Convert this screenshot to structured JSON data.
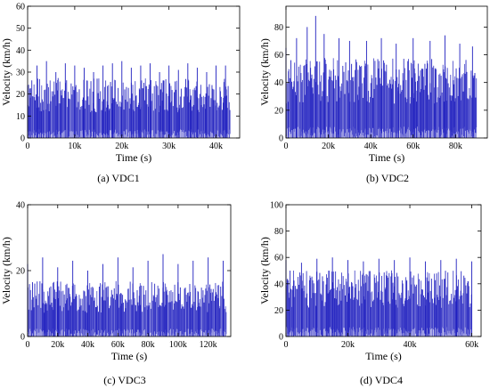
{
  "chart_data": [
    {
      "type": "line",
      "caption": "(a) VDC1",
      "xlabel": "Time (s)",
      "ylabel": "Velocity (km/h)",
      "xlim": [
        0,
        45000
      ],
      "ylim": [
        0,
        60
      ],
      "xticks": [
        0,
        10000,
        20000,
        30000,
        40000
      ],
      "xtick_labels": [
        "0",
        "10k",
        "20k",
        "30k",
        "40k"
      ],
      "yticks": [
        0,
        10,
        20,
        30,
        40,
        50,
        60
      ],
      "ytick_labels": [
        "0",
        "10",
        "20",
        "30",
        "40",
        "50",
        "60"
      ],
      "grid": false,
      "color": "#1f1fbf",
      "data_end": 43000,
      "typical_peak": 26,
      "max_peak": 35,
      "x": [
        0,
        2000,
        4000,
        6000,
        8000,
        10000,
        12000,
        14000,
        16000,
        18000,
        20000,
        22000,
        24000,
        26000,
        28000,
        30000,
        32000,
        34000,
        36000,
        38000,
        40000,
        42000
      ],
      "y": [
        24,
        33,
        35,
        30,
        34,
        33,
        32,
        30,
        33,
        34,
        35,
        32,
        33,
        34,
        30,
        33,
        31,
        34,
        32,
        30,
        33,
        33
      ]
    },
    {
      "type": "line",
      "caption": "(b) VDC2",
      "xlabel": "Time (s)",
      "ylabel": "Velocity (km/h)",
      "xlim": [
        0,
        95000
      ],
      "ylim": [
        0,
        95
      ],
      "xticks": [
        0,
        20000,
        40000,
        60000,
        80000
      ],
      "xtick_labels": [
        "0",
        "20k",
        "40k",
        "60k",
        "80k"
      ],
      "yticks": [
        0,
        20,
        40,
        60,
        80
      ],
      "ytick_labels": [
        "0",
        "20",
        "40",
        "60",
        "80"
      ],
      "grid": false,
      "color": "#1f1fbf",
      "data_end": 90000,
      "typical_peak": 55,
      "max_peak": 88,
      "x": [
        0,
        5000,
        10000,
        14000,
        18000,
        25000,
        30000,
        38000,
        45000,
        52000,
        60000,
        68000,
        75000,
        82000,
        88000
      ],
      "y": [
        65,
        72,
        80,
        88,
        75,
        72,
        70,
        70,
        72,
        68,
        72,
        70,
        74,
        68,
        66
      ]
    },
    {
      "type": "line",
      "caption": "(c) VDC3",
      "xlabel": "Time (s)",
      "ylabel": "Velocity (km/h)",
      "xlim": [
        0,
        135000
      ],
      "ylim": [
        0,
        40
      ],
      "xticks": [
        0,
        20000,
        40000,
        60000,
        80000,
        100000,
        120000
      ],
      "xtick_labels": [
        "0",
        "20k",
        "40k",
        "60k",
        "80k",
        "100k",
        "120k"
      ],
      "yticks": [
        0,
        20,
        40
      ],
      "ytick_labels": [
        "0",
        "20",
        "40"
      ],
      "grid": false,
      "color": "#1f1fbf",
      "data_end": 132000,
      "typical_peak": 16,
      "max_peak": 25,
      "x": [
        0,
        10000,
        20000,
        30000,
        40000,
        50000,
        60000,
        70000,
        80000,
        90000,
        100000,
        110000,
        120000,
        130000
      ],
      "y": [
        22,
        24,
        21,
        23,
        20,
        22,
        24,
        21,
        23,
        25,
        22,
        23,
        24,
        23
      ]
    },
    {
      "type": "line",
      "caption": "(d) VDC4",
      "xlabel": "Time (s)",
      "ylabel": "Velocity (km/h)",
      "xlim": [
        0,
        63000
      ],
      "ylim": [
        0,
        100
      ],
      "xticks": [
        0,
        20000,
        40000,
        60000
      ],
      "xtick_labels": [
        "0",
        "20k",
        "40k",
        "60k"
      ],
      "yticks": [
        0,
        20,
        40,
        60,
        80,
        100
      ],
      "ytick_labels": [
        "0",
        "20",
        "40",
        "60",
        "80",
        "100"
      ],
      "grid": false,
      "color": "#1f1fbf",
      "data_end": 60000,
      "typical_peak": 48,
      "max_peak": 60,
      "x": [
        0,
        5000,
        10000,
        15000,
        20000,
        25000,
        30000,
        35000,
        40000,
        45000,
        50000,
        55000,
        60000
      ],
      "y": [
        58,
        56,
        59,
        60,
        58,
        57,
        59,
        58,
        60,
        57,
        58,
        59,
        57
      ]
    }
  ]
}
